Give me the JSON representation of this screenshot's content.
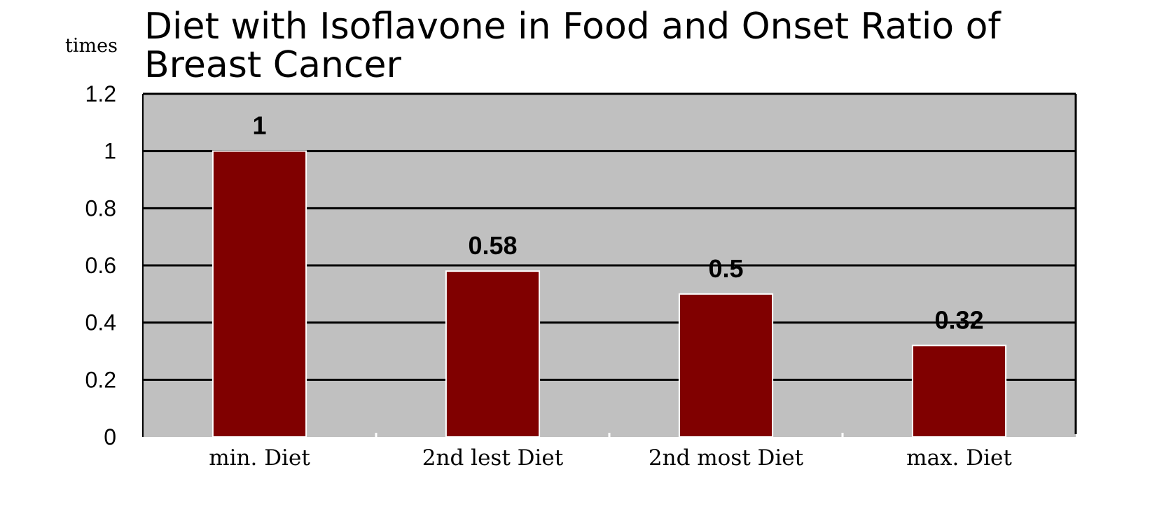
{
  "chart_data": {
    "type": "bar",
    "title_lines": [
      "Diet with Isoflavone in Food and Onset Ratio of",
      "Breast Cancer"
    ],
    "ylabel": "times",
    "xlabel": "",
    "categories": [
      "min. Diet",
      "2nd lest Diet",
      "2nd most Diet",
      "max. Diet"
    ],
    "values": [
      1,
      0.58,
      0.5,
      0.32
    ],
    "data_labels": [
      "1",
      "0.58",
      "0.5",
      "0.32"
    ],
    "ylim": [
      0,
      1.2
    ],
    "yticks": [
      "0",
      "0.2",
      "0.4",
      "0.6",
      "0.8",
      "1",
      "1.2"
    ],
    "grid": true,
    "legend": "none",
    "colors": {
      "bar": "#800000",
      "plot_background": "#c0c0c0",
      "gridline": "#000000"
    }
  }
}
